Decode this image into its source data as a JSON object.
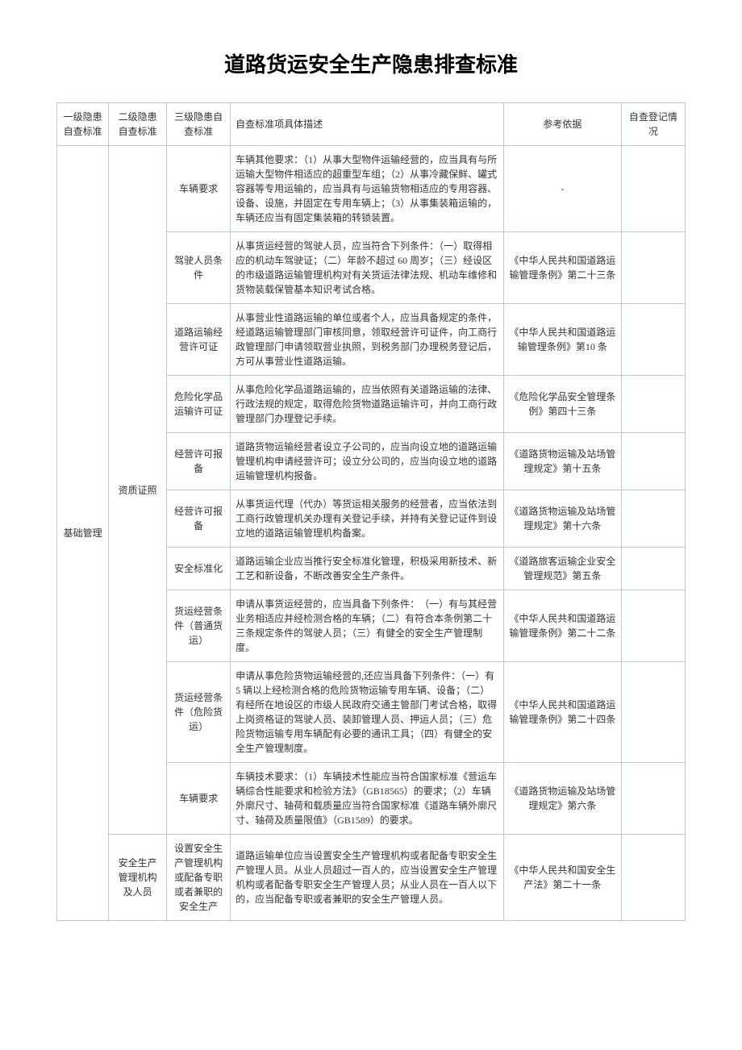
{
  "title": "道路货运安全生产隐患排查标准",
  "headers": {
    "l1": "一级隐患自查标准",
    "l2": "二级隐患自查标准",
    "l3": "三级隐患自查标准",
    "desc": "自查标准项具体描述",
    "ref": "参考依据",
    "log": "自查登记情况"
  },
  "level1": "基础管理",
  "level2_a": "资质证照",
  "level2_b": "安全生产管理机构及人员",
  "rows": [
    {
      "l3": "车辆要求",
      "desc": "车辆其他要求：（1）从事大型物件运输经营的，应当具有与所运输大型物件相适应的超重型车组；（2）从事冷藏保鲜、罐式容器等专用运输的，应当具有与运输货物相适应的专用容器、设备、设施，并固定在专用车辆上；（3）从事集装箱运输的，车辆还应当有固定集装箱的转锁装置。",
      "ref": "-"
    },
    {
      "l3": "驾驶人员条件",
      "desc": "从事货运经营的驾驶人员，应当符合下列条件：（一）取得相应的机动车驾驶证；（二）年龄不超过 60 周岁；（三）经设区的市级道路运输管理机构对有关货运法律法规、机动车维修和货物装载保管基本知识考试合格。",
      "ref": "《中华人民共和国道路运输管理条例》第二十三条"
    },
    {
      "l3": "道路运输经营许可证",
      "desc": "从事营业性道路运输的单位或者个人，应当具备规定的条件，经道路运输管理部门审核同意，领取经营许可证件，向工商行政管理部门申请领取营业执照，到税务部门办理税务登记后，方可从事营业性道路运输。",
      "ref": "《中华人民共和国道路运输管理条例》第10 条"
    },
    {
      "l3": "危险化学品运输许可证",
      "desc": "从事危险化学品道路运输的，应当依照有关道路运输的法律、行政法规的规定，取得危险货物道路运输许可，并向工商行政管理部门办理登记手续。",
      "ref": "《危险化学品安全管理条例》第四十三条"
    },
    {
      "l3": "经营许可报备",
      "desc": "道路货物运输经营者设立子公司的，应当向设立地的道路运输管理机构申请经营许可；设立分公司的，应当向设立地的道路运输管理机构报备。",
      "ref": "《道路货物运输及站场管理规定》第十五条"
    },
    {
      "l3": "经营许可报备",
      "desc": "从事货运代理（代办）等货运相关服务的经营者，应当依法到工商行政管理机关办理有关登记手续，并持有关登记证件到设立地的道路运输管理机构备案。",
      "ref": "《道路货物运输及站场管理规定》第十六条"
    },
    {
      "l3": "安全标准化",
      "desc": "道路运输企业应当推行安全标准化管理，积极采用新技术、新工艺和新设备，不断改善安全生产条件。",
      "ref": "《道路旅客运输企业安全管理规范》第五条"
    },
    {
      "l3": "货运经营条件（普通货运）",
      "desc": "申请从事货运经营的，应当具备下列条件：　（一）有与其经营业务相适应并经检测合格的车辆；（二）有符合本条例第二十三条规定条件的驾驶人员；（三）有健全的安全生产管理制度。",
      "ref": "《中华人民共和国道路运输管理条例》第二十二条"
    },
    {
      "l3": "货运经营条件（危险货运）",
      "desc": "申请从事危险货物运输经营的,还应当具备下列条件：（一）有 5 辆以上经检测合格的危险货物运输专用车辆、设备；（二）有经所在地设区的市级人民政府交通主管部门考试合格，取得上岗资格证的驾驶人员、装卸管理人员、押运人员；（三）危险货物运输专用车辆配有必要的通讯工具；（四）有健全的安全生产管理制度。",
      "ref": "《中华人民共和国道路运输管理条例》第二十四条"
    },
    {
      "l3": "车辆要求",
      "desc": "车辆技术要求：（1）车辆技术性能应当符合国家标准《营运车辆综合性能要求和检验方法》（GB18565）的要求；（2）车辆外廓尺寸、轴荷和载质量应当符合国家标准《道路车辆外廓尺寸、轴荷及质量限值》（GB1589）的要求。",
      "ref": "《道路货物运输及站场管理规定》第六条"
    },
    {
      "l3": "设置安全生产管理机构或配备专职或者兼职的安全生产",
      "desc": "道路运输单位应当设置安全生产管理机构或者配备专职安全生产管理人员。从业人员超过一百人的，应当设置安全生产管理机构或者配备专职安全生产管理人员；从业人员在一百人以下的，应当配备专职或者兼职的安全生产管理人员。",
      "ref": "《中华人民共和国安全生产法》第二十一条"
    }
  ]
}
